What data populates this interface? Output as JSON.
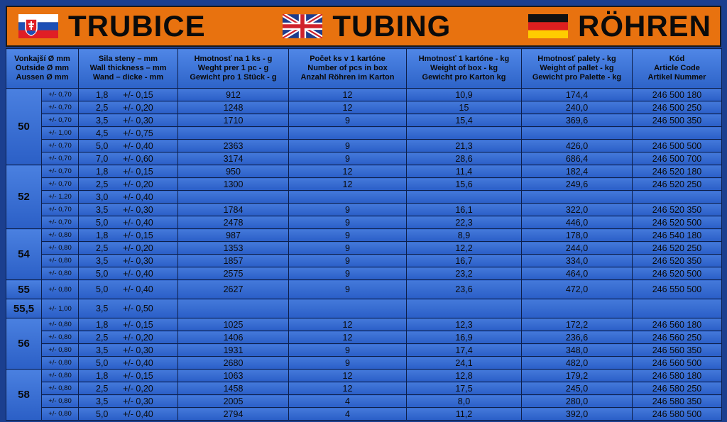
{
  "banner": {
    "sk_title": "TRUBICE",
    "en_title": "TUBING",
    "de_title": "RÖHREN",
    "flags": [
      "slovakia-flag",
      "uk-flag",
      "germany-flag"
    ],
    "colors": {
      "banner": "#e8720f",
      "table": "#2f63c9",
      "background": "#1b3f8f"
    }
  },
  "headers": [
    [
      "Vonkajší Ø mm",
      "Outside Ø mm",
      "Aussen Ø mm"
    ],
    [
      "Sila steny – mm",
      "Wall thickness – mm",
      "Wand – dicke - mm"
    ],
    [
      "Hmotnosť na 1 ks - g",
      "Weght prer 1 pc - g",
      "Gewicht pro 1 Stück - g"
    ],
    [
      "Počet ks v 1 kartóne",
      "Number of pcs in box",
      "Anzahl Röhren im Karton"
    ],
    [
      "Hmotnosť  1 kartóne - kg",
      "Weight of box - kg",
      "Gewicht pro Karton kg"
    ],
    [
      "Hmotnosť palety - kg",
      "Weight of pallet - kg",
      "Gewicht pro Palette - kg"
    ],
    [
      "Kód",
      "Article Code",
      "Artikel Nummer"
    ]
  ],
  "groups": [
    {
      "diameter": "50",
      "rows": [
        {
          "otol": "+/- 0,70",
          "wall": "1,8",
          "wtol": "+/- 0,15",
          "weight": "912",
          "pcs": "12",
          "box": "10,9",
          "pallet": "174,4",
          "code": "246 500 180"
        },
        {
          "otol": "+/- 0,70",
          "wall": "2,5",
          "wtol": "+/- 0,20",
          "weight": "1248",
          "pcs": "12",
          "box": "15",
          "pallet": "240,0",
          "code": "246 500 250"
        },
        {
          "otol": "+/- 0,70",
          "wall": "3,5",
          "wtol": "+/- 0,30",
          "weight": "1710",
          "pcs": "9",
          "box": "15,4",
          "pallet": "369,6",
          "code": "246 500 350"
        },
        {
          "otol": "+/- 1,00",
          "wall": "4,5",
          "wtol": "+/- 0,75",
          "weight": "",
          "pcs": "",
          "box": "",
          "pallet": "",
          "code": ""
        },
        {
          "otol": "+/- 0,70",
          "wall": "5,0",
          "wtol": "+/- 0,40",
          "weight": "2363",
          "pcs": "9",
          "box": "21,3",
          "pallet": "426,0",
          "code": "246 500 500"
        },
        {
          "otol": "+/- 0,70",
          "wall": "7,0",
          "wtol": "+/- 0,60",
          "weight": "3174",
          "pcs": "9",
          "box": "28,6",
          "pallet": "686,4",
          "code": "246 500 700"
        }
      ]
    },
    {
      "diameter": "52",
      "rows": [
        {
          "otol": "+/- 0,70",
          "wall": "1,8",
          "wtol": "+/- 0,15",
          "weight": "950",
          "pcs": "12",
          "box": "11,4",
          "pallet": "182,4",
          "code": "246 520 180"
        },
        {
          "otol": "+/- 0,70",
          "wall": "2,5",
          "wtol": "+/- 0,20",
          "weight": "1300",
          "pcs": "12",
          "box": "15,6",
          "pallet": "249,6",
          "code": "246 520 250"
        },
        {
          "otol": "+/- 1,20",
          "wall": "3,0",
          "wtol": "+/- 0,40",
          "weight": "",
          "pcs": "",
          "box": "",
          "pallet": "",
          "code": ""
        },
        {
          "otol": "+/- 0,70",
          "wall": "3,5",
          "wtol": "+/- 0,30",
          "weight": "1784",
          "pcs": "9",
          "box": "16,1",
          "pallet": "322,0",
          "code": "246 520 350"
        },
        {
          "otol": "+/- 0,70",
          "wall": "5,0",
          "wtol": "+/- 0,40",
          "weight": "2478",
          "pcs": "9",
          "box": "22,3",
          "pallet": "446,0",
          "code": "246 520 500"
        }
      ]
    },
    {
      "diameter": "54",
      "rows": [
        {
          "otol": "+/- 0,80",
          "wall": "1,8",
          "wtol": "+/- 0,15",
          "weight": "987",
          "pcs": "9",
          "box": "8,9",
          "pallet": "178,0",
          "code": "246 540 180"
        },
        {
          "otol": "+/- 0,80",
          "wall": "2,5",
          "wtol": "+/- 0,20",
          "weight": "1353",
          "pcs": "9",
          "box": "12,2",
          "pallet": "244,0",
          "code": "246 520 250"
        },
        {
          "otol": "+/- 0,80",
          "wall": "3,5",
          "wtol": "+/- 0,30",
          "weight": "1857",
          "pcs": "9",
          "box": "16,7",
          "pallet": "334,0",
          "code": "246 520 350"
        },
        {
          "otol": "+/- 0,80",
          "wall": "5,0",
          "wtol": "+/- 0,40",
          "weight": "2575",
          "pcs": "9",
          "box": "23,2",
          "pallet": "464,0",
          "code": "246 520 500"
        }
      ]
    },
    {
      "diameter": "55",
      "tall": true,
      "rows": [
        {
          "otol": "+/- 0,80",
          "wall": "5,0",
          "wtol": "+/- 0,40",
          "weight": "2627",
          "pcs": "9",
          "box": "23,6",
          "pallet": "472,0",
          "code": "246 550 500"
        }
      ]
    },
    {
      "diameter": "55,5",
      "tall": true,
      "rows": [
        {
          "otol": "+/- 1,00",
          "wall": "3,5",
          "wtol": "+/- 0,50",
          "weight": "",
          "pcs": "",
          "box": "",
          "pallet": "",
          "code": ""
        }
      ]
    },
    {
      "diameter": "56",
      "rows": [
        {
          "otol": "+/- 0,80",
          "wall": "1,8",
          "wtol": "+/- 0,15",
          "weight": "1025",
          "pcs": "12",
          "box": "12,3",
          "pallet": "172,2",
          "code": "246 560 180"
        },
        {
          "otol": "+/- 0,80",
          "wall": "2,5",
          "wtol": "+/- 0,20",
          "weight": "1406",
          "pcs": "12",
          "box": "16,9",
          "pallet": "236,6",
          "code": "246 560 250"
        },
        {
          "otol": "+/- 0,80",
          "wall": "3,5",
          "wtol": "+/- 0,30",
          "weight": "1931",
          "pcs": "9",
          "box": "17,4",
          "pallet": "348,0",
          "code": "246 560 350"
        },
        {
          "otol": "+/- 0,80",
          "wall": "5,0",
          "wtol": "+/- 0,40",
          "weight": "2680",
          "pcs": "9",
          "box": "24,1",
          "pallet": "482,0",
          "code": "246 560 500"
        }
      ]
    },
    {
      "diameter": "58",
      "rows": [
        {
          "otol": "+/- 0,80",
          "wall": "1,8",
          "wtol": "+/- 0,15",
          "weight": "1063",
          "pcs": "12",
          "box": "12,8",
          "pallet": "179,2",
          "code": "246 580 180"
        },
        {
          "otol": "+/- 0,80",
          "wall": "2,5",
          "wtol": "+/- 0,20",
          "weight": "1458",
          "pcs": "12",
          "box": "17,5",
          "pallet": "245,0",
          "code": "246 580 250"
        },
        {
          "otol": "+/- 0,80",
          "wall": "3,5",
          "wtol": "+/- 0,30",
          "weight": "2005",
          "pcs": "4",
          "box": "8,0",
          "pallet": "280,0",
          "code": "246 580 350"
        },
        {
          "otol": "+/- 0,80",
          "wall": "5,0",
          "wtol": "+/- 0,40",
          "weight": "2794",
          "pcs": "4",
          "box": "11,2",
          "pallet": "392,0",
          "code": "246 580 500"
        }
      ]
    }
  ]
}
